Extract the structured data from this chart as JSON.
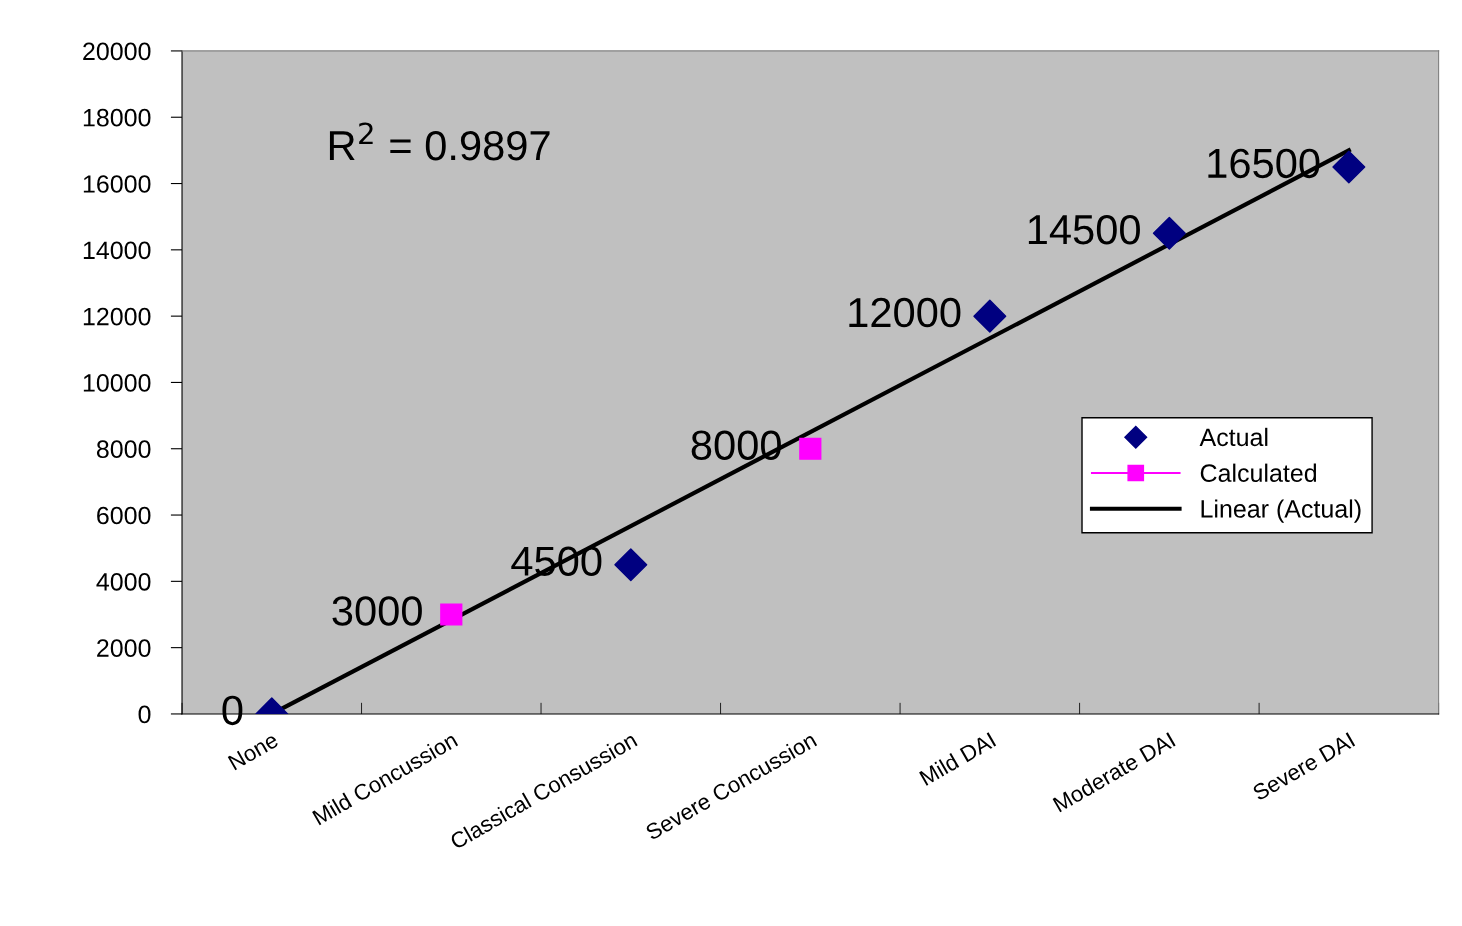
{
  "chart_data": {
    "type": "scatter",
    "categories": [
      "None",
      "Mild Concussion",
      "Classical Consussion",
      "Severe Concussion",
      "Mild DAI",
      "Moderate DAI",
      "Severe DAI"
    ],
    "series": [
      {
        "name": "Actual",
        "marker": "diamond",
        "color": "#000080",
        "values": [
          0,
          null,
          4500,
          null,
          12000,
          14500,
          16500
        ],
        "value_labels": [
          "0",
          null,
          "4500",
          null,
          "12000",
          "14500",
          "16500"
        ]
      },
      {
        "name": "Calculated",
        "type": "line",
        "marker": "square",
        "color": "#ff00ff",
        "values": [
          null,
          3000,
          null,
          8000,
          null,
          null,
          null
        ],
        "value_labels": [
          null,
          "3000",
          null,
          "8000",
          null,
          null,
          null
        ]
      },
      {
        "name": "Linear (Actual)",
        "type": "line",
        "marker": "none",
        "color": "#000000",
        "x": [
          "None",
          "Severe DAI"
        ],
        "values": [
          0,
          17000
        ]
      }
    ],
    "ylim": [
      0,
      20000
    ],
    "yticks": [
      0,
      2000,
      4000,
      6000,
      8000,
      10000,
      12000,
      14000,
      16000,
      18000,
      20000
    ],
    "annotations": [
      "R$^{2}$ = 0.9897"
    ],
    "legend": "right",
    "grid": false
  }
}
